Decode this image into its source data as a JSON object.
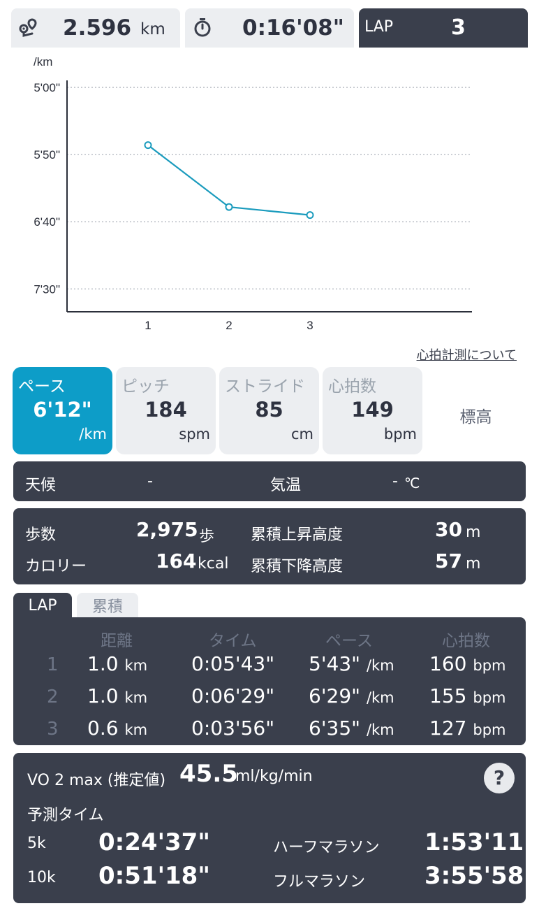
{
  "top": {
    "distance_value": "2.596",
    "distance_unit": "km",
    "time_value": "0:16'08\"",
    "lap_label": "LAP",
    "lap_value": "3"
  },
  "chart_data": {
    "type": "line",
    "ylabel": "/km",
    "yticks": [
      "5'00\"",
      "5'50\"",
      "6'40\"",
      "7'30\""
    ],
    "ytick_seconds": [
      300,
      350,
      400,
      450
    ],
    "ylim_seconds": [
      300,
      467
    ],
    "y_inverted": true,
    "categories": [
      "1",
      "2",
      "3"
    ],
    "values_seconds": [
      343,
      389,
      395
    ],
    "grid": true,
    "color": "#1a9bbd"
  },
  "heart_rate_link": "心拍計測について",
  "metrics": [
    {
      "name": "ペース",
      "value": "6'12\"",
      "unit": "/km"
    },
    {
      "name": "ピッチ",
      "value": "184",
      "unit": "spm"
    },
    {
      "name": "ストライド",
      "value": "85",
      "unit": "cm"
    },
    {
      "name": "心拍数",
      "value": "149",
      "unit": "bpm"
    },
    {
      "name": "標高"
    }
  ],
  "weather": {
    "label": "天候",
    "value": "-",
    "temp_label": "気温",
    "temp_value": "-",
    "temp_unit": "℃"
  },
  "stats": {
    "steps_label": "歩数",
    "steps_value": "2,975",
    "steps_unit": "歩",
    "cal_label": "カロリー",
    "cal_value": "164",
    "cal_unit": "kcal",
    "ascent_label": "累積上昇高度",
    "ascent_value": "30",
    "ascent_unit": "m",
    "descent_label": "累積下降高度",
    "descent_value": "57",
    "descent_unit": "m"
  },
  "lap_tabs": [
    "LAP",
    "累積"
  ],
  "lap_table": {
    "headers": [
      "距離",
      "タイム",
      "ペース",
      "心拍数"
    ],
    "rows": [
      {
        "idx": "1",
        "dist": "1.0",
        "dist_u": "km",
        "time": "0:05'43\"",
        "pace": "5'43\"",
        "pace_u": "/km",
        "hr": "160",
        "hr_u": "bpm"
      },
      {
        "idx": "2",
        "dist": "1.0",
        "dist_u": "km",
        "time": "0:06'29\"",
        "pace": "6'29\"",
        "pace_u": "/km",
        "hr": "155",
        "hr_u": "bpm"
      },
      {
        "idx": "3",
        "dist": "0.6",
        "dist_u": "km",
        "time": "0:03'56\"",
        "pace": "6'35\"",
        "pace_u": "/km",
        "hr": "127",
        "hr_u": "bpm"
      }
    ]
  },
  "vo2": {
    "label": "VO 2 max (推定値)",
    "value": "45.5",
    "unit": "ml/kg/min",
    "help": "?",
    "predict_label": "予測タイム",
    "p5k_label": "5k",
    "p5k": "0:24'37\"",
    "p10k_label": "10k",
    "p10k": "0:51'18\"",
    "half_label": "ハーフマラソン",
    "half": "1:53'11\"",
    "full_label": "フルマラソン",
    "full": "3:55'58\""
  }
}
